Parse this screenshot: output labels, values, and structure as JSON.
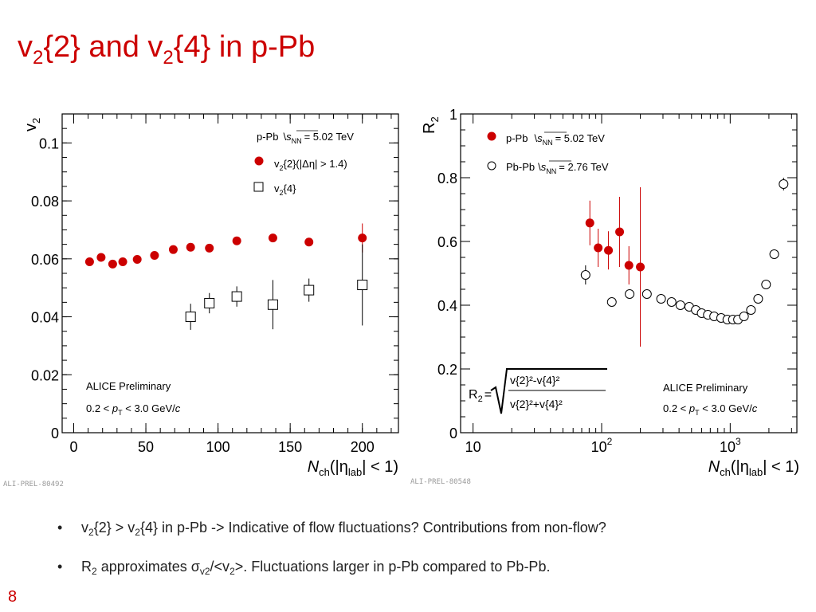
{
  "slide": {
    "title": {
      "v": "v",
      "sub1": "2",
      "mid1": "{2} and v",
      "sub2": "2",
      "end": "{4} in p-Pb"
    },
    "page_number": "8",
    "bullets": [
      {
        "a": "v",
        "s1": "2",
        "b": "{2} > v",
        "s2": "2",
        "c": "{4} in p-Pb -> Indicative of flow fluctuations? Contributions from non-flow?"
      },
      {
        "a": "R",
        "s1": "2",
        "b": " approximates σ",
        "s2": "v2",
        "c": "/<v",
        "s3": "2",
        "d": ">. Fluctuations larger in p-Pb compared to Pb-Pb."
      }
    ]
  },
  "colors": {
    "accent": "#cc0000",
    "pPb": "#cc0000",
    "PbPb": "#000000"
  },
  "chart_data": [
    {
      "type": "scatter",
      "ylabel": {
        "main": "v",
        "sub": "2"
      },
      "xlabel": {
        "main": "N",
        "sub": "ch",
        "mid": "(|η",
        "sub2": "lab",
        "end": "| < 1)"
      },
      "xlim": [
        -8,
        225
      ],
      "ylim": [
        0,
        0.11
      ],
      "x_ticks": [
        0,
        50,
        100,
        150,
        200
      ],
      "x_tick_labels": [
        "0",
        "50",
        "100",
        "150",
        "200"
      ],
      "y_ticks": [
        0,
        0.02,
        0.04,
        0.06,
        0.08,
        0.1
      ],
      "y_tick_labels": [
        "0",
        "0.02",
        "0.04",
        "0.06",
        "0.08",
        "0.1"
      ],
      "legend": {
        "header": {
          "a": "p-Pb",
          "s": "s",
          "nn": "NN",
          "b": "= 5.02 TeV"
        },
        "entries": [
          {
            "a": "v",
            "s": "2",
            "b": "{2}(|Δη| > 1.4)",
            "marker": "filled-circle"
          },
          {
            "a": "v",
            "s": "2",
            "b": "{4}",
            "marker": "open-square"
          }
        ]
      },
      "annotation": {
        "line1": "ALICE Preliminary",
        "l2a": "0.2 < ",
        "l2b": "p",
        "l2c": "T",
        "l2d": " < 3.0 GeV/",
        "l2e": "c"
      },
      "ref": "ALI-PREL-80492",
      "series": [
        {
          "marker": "filled-circle",
          "color": "#cc0000",
          "x": [
            11,
            19,
            27,
            34,
            44,
            56,
            69,
            81,
            94,
            113,
            138,
            163,
            200
          ],
          "y": [
            0.059,
            0.0605,
            0.0582,
            0.059,
            0.0598,
            0.0612,
            0.0632,
            0.064,
            0.0637,
            0.0662,
            0.0672,
            0.0658,
            0.0672
          ],
          "err": [
            0,
            0,
            0,
            0,
            0,
            0,
            0,
            0,
            0,
            0,
            0,
            0,
            0.005
          ]
        },
        {
          "marker": "open-square",
          "color": "#000000",
          "x": [
            81,
            94,
            113,
            138,
            163,
            200
          ],
          "y": [
            0.04,
            0.0447,
            0.047,
            0.0442,
            0.0492,
            0.051
          ],
          "err": [
            0.0045,
            0.0035,
            0.0035,
            0.0085,
            0.004,
            0.014
          ]
        }
      ]
    },
    {
      "type": "scatter",
      "ylabel": {
        "main": "R",
        "sub": "2"
      },
      "xlabel": {
        "main": "N",
        "sub": "ch",
        "mid": "(|η",
        "sub2": "lab",
        "end": "| < 1)"
      },
      "x_scale": "log",
      "xlim": [
        8,
        3300
      ],
      "ylim": [
        0,
        1
      ],
      "x_ticks": [
        10,
        100,
        1000
      ],
      "x_tick_labels": [
        {
          "base": "10",
          "exp": ""
        },
        {
          "base": "10",
          "exp": "2"
        },
        {
          "base": "10",
          "exp": "3"
        }
      ],
      "y_ticks": [
        0,
        0.2,
        0.4,
        0.6,
        0.8,
        1
      ],
      "y_tick_labels": [
        "0",
        "0.2",
        "0.4",
        "0.6",
        "0.8",
        "1"
      ],
      "legend": {
        "entries": [
          {
            "a": "p-Pb",
            "s": "s",
            "nn": "NN",
            "b": "= 5.02 TeV",
            "marker": "filled-circle"
          },
          {
            "a": "Pb-Pb",
            "s": "s",
            "nn": "NN",
            "b": "= 2.76 TeV",
            "marker": "open-circle"
          }
        ]
      },
      "formula": {
        "lhs": "R",
        "lhs_sub": "2",
        "eq": "=",
        "num": "v{2}²-v{4}²",
        "den": "v{2}²+v{4}²"
      },
      "annotation": {
        "line1": "ALICE Preliminary",
        "l2a": "0.2 < ",
        "l2b": "p",
        "l2c": "T",
        "l2d": " < 3.0 GeV/",
        "l2e": "c"
      },
      "ref": "ALI-PREL-80548",
      "series": [
        {
          "marker": "filled-circle",
          "color": "#cc0000",
          "x": [
            81,
            94,
            113,
            138,
            163,
            200
          ],
          "y": [
            0.658,
            0.58,
            0.572,
            0.63,
            0.525,
            0.52
          ],
          "err": [
            0.07,
            0.06,
            0.06,
            0.11,
            0.06,
            0.25
          ]
        },
        {
          "marker": "open-circle",
          "color": "#000000",
          "x": [
            75,
            120,
            165,
            225,
            290,
            350,
            410,
            480,
            540,
            600,
            670,
            750,
            850,
            950,
            1050,
            1150,
            1280,
            1450,
            1650,
            1900,
            2200,
            2600
          ],
          "y": [
            0.495,
            0.41,
            0.435,
            0.435,
            0.42,
            0.41,
            0.4,
            0.395,
            0.385,
            0.375,
            0.37,
            0.365,
            0.36,
            0.355,
            0.355,
            0.355,
            0.365,
            0.385,
            0.42,
            0.465,
            0.56,
            0.78
          ],
          "err": [
            0.03,
            0.01,
            0.01,
            0.01,
            0.005,
            0.005,
            0.005,
            0.005,
            0.005,
            0.005,
            0.005,
            0.005,
            0.005,
            0.005,
            0.005,
            0.005,
            0.005,
            0.005,
            0.005,
            0.01,
            0.01,
            0.02
          ]
        }
      ]
    }
  ]
}
